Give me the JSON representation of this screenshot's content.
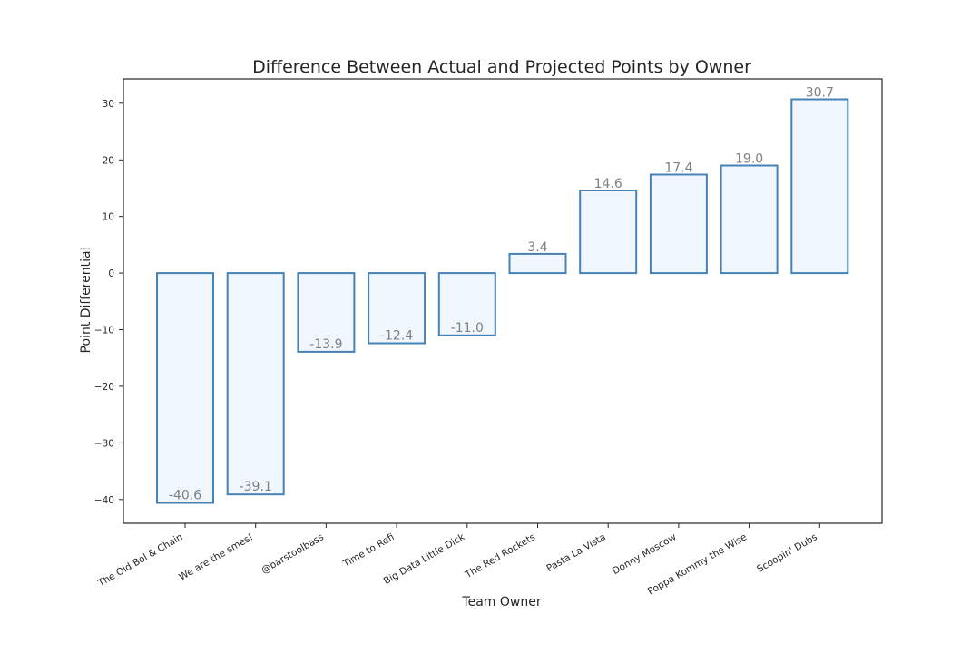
{
  "chart_data": {
    "type": "bar",
    "title": "Difference Between Actual and Projected Points by Owner",
    "xlabel": "Team Owner",
    "ylabel": "Point Differential",
    "categories": [
      "The Old Bol & Chain",
      "We are the smes!",
      "@barstoolbass",
      "Time to Refi",
      "Big Data Little Dick",
      "The Red Rockets",
      "Pasta La Vista",
      "Donny Moscow",
      "Poppa Kommy the Wise",
      "Scoopin' Dubs"
    ],
    "values": [
      -40.6,
      -39.1,
      -13.9,
      -12.4,
      -11.0,
      3.4,
      14.6,
      17.4,
      19.0,
      30.7
    ],
    "value_labels": [
      "-40.6",
      "-39.1",
      "-13.9",
      "-12.4",
      "-11.0",
      "3.4",
      "14.6",
      "17.4",
      "19.0",
      "30.7"
    ],
    "ylim": [
      -44.2,
      34.3
    ],
    "yticks": [
      -40,
      -30,
      -20,
      -10,
      0,
      10,
      20,
      30
    ],
    "ytick_labels": [
      "−40",
      "−30",
      "−20",
      "−10",
      "0",
      "10",
      "20",
      "30"
    ],
    "grid": false,
    "bar_fill": "#eff6fd",
    "bar_edge": "#4682b4",
    "label_color": "#808080"
  }
}
